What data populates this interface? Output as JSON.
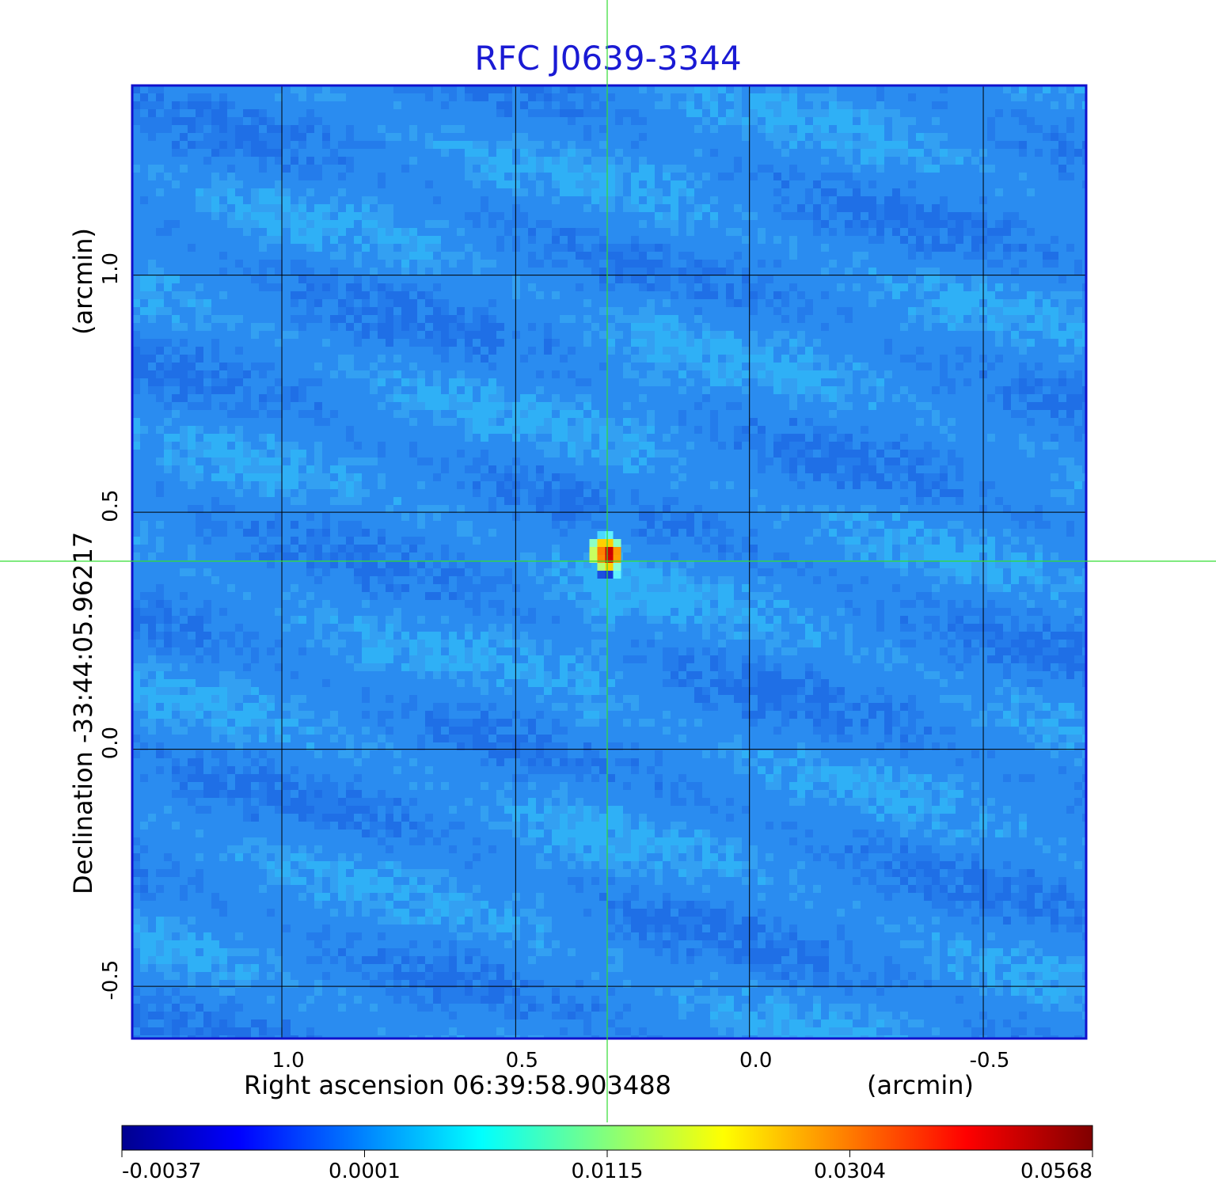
{
  "chart_data": {
    "type": "heatmap",
    "title": "RFC J0639-3344",
    "xlabel": "Right ascension  06:39:58.903488",
    "xunit": "(arcmin)",
    "ylabel": "Declination  -33:44:05.96217",
    "yunit": "(arcmin)",
    "x_ticks": [
      1.0,
      0.5,
      0.0,
      -0.5
    ],
    "x_tick_labels": [
      "1.0",
      "0.5",
      "0.0",
      "-0.5"
    ],
    "y_ticks": [
      1.0,
      0.5,
      0.0,
      -0.5
    ],
    "y_tick_labels": [
      "1.0",
      "0.5",
      "0.0",
      "-0.5"
    ],
    "xlim": [
      1.32,
      -0.72
    ],
    "ylim": [
      -0.61,
      1.4
    ],
    "grid": true,
    "crosshair": {
      "x": 0.3,
      "y": 0.4
    },
    "peak": {
      "x": 0.3,
      "y": 0.41,
      "value": 0.0568
    },
    "colorbar": {
      "tick_values": [
        -0.0037,
        0.0001,
        0.0115,
        0.0304,
        0.0568
      ],
      "tick_labels": [
        "-0.0037",
        "0.0001",
        "0.0115",
        "0.0304",
        "0.0568"
      ],
      "colormap": "jet"
    },
    "colors": {
      "frame": "#1010cc",
      "title": "#1a1ad4",
      "crosshair": "#33dd33",
      "background_map": "#2a8cf0"
    }
  }
}
